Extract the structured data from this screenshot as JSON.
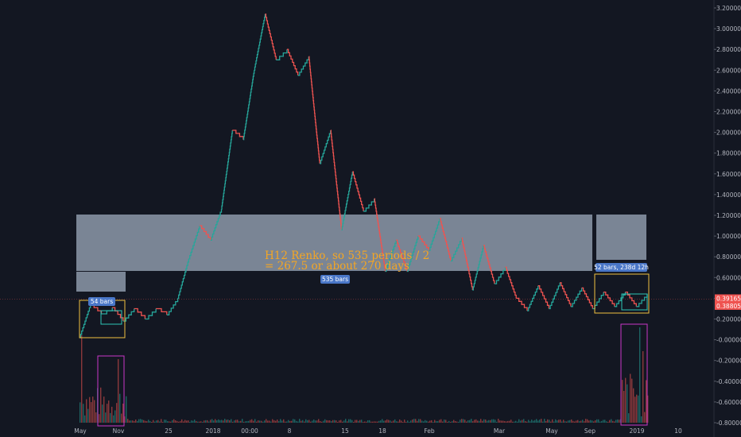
{
  "chart_data": {
    "type": "line",
    "title": "",
    "annotation_lines": [
      "H12 Renko, so 535 periods / 2",
      "= 267.5 or about 270 days"
    ],
    "measure_labels": [
      "54 bars",
      "535 bars",
      "52 bars, 238d 12h"
    ],
    "x_tick_labels": [
      "May",
      "Nov",
      "25",
      "2018",
      "00:00",
      "8",
      "15",
      "18",
      "Feb",
      "Mar",
      "May",
      "Sep",
      "2019",
      "10"
    ],
    "y_tick_labels": [
      "3.20000",
      "3.00000",
      "2.80000",
      "2.60000",
      "2.40000",
      "2.20000",
      "2.00000",
      "1.80000",
      "1.60000",
      "1.40000",
      "1.20000",
      "1.00000",
      "0.80000",
      "0.60000",
      "0.40000",
      "0.20000",
      "-0.00000",
      "-0.20000",
      "-0.40000",
      "-0.60000",
      "-0.80000"
    ],
    "ylim": [
      -0.84,
      3.26
    ],
    "price_labels": [
      {
        "text": "0.39165",
        "value": 0.39165,
        "color": "#ef5350"
      },
      {
        "text": "0.38805",
        "value": 0.38805,
        "color": "#ef5350"
      }
    ],
    "series": [
      {
        "values": [
          0.02,
          0.34,
          0.25,
          0.31,
          0.18,
          0.3,
          0.2,
          0.3,
          0.24,
          0.4,
          0.78,
          1.1,
          0.96,
          1.26,
          2.02,
          1.93,
          2.6,
          3.14,
          2.7,
          2.8,
          2.55,
          2.73,
          1.7,
          2.02,
          1.06,
          1.62,
          1.24,
          1.36,
          0.66,
          0.96,
          0.66,
          1.0,
          0.86,
          1.17,
          0.76,
          0.98,
          0.48,
          0.91,
          0.54,
          0.7,
          0.4,
          0.28,
          0.52,
          0.3,
          0.55,
          0.32,
          0.5,
          0.3,
          0.46,
          0.32,
          0.46,
          0.32,
          0.44
        ]
      }
    ],
    "colors": {
      "background": "#131722",
      "up": "#26a69a",
      "down": "#ef5350",
      "zone": "#b2c0d4",
      "bar_tag": "#4a77c8",
      "rect_yellow": "#f0c040",
      "rect_teal": "#2ec4b6",
      "rect_magenta": "#c837c8",
      "grid": "#1e222d"
    },
    "grid": false
  }
}
